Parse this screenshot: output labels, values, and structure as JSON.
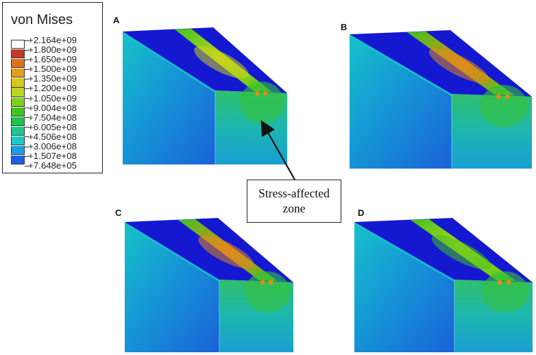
{
  "legend": {
    "title": "von Mises",
    "entries": [
      {
        "label": "+2.164e+09",
        "color": "#ffffff"
      },
      {
        "label": "+1.800e+09",
        "color": "#c0392b"
      },
      {
        "label": "+1.650e+09",
        "color": "#e0701e"
      },
      {
        "label": "+1.500e+09",
        "color": "#e3a01c"
      },
      {
        "label": "+1.350e+09",
        "color": "#d8c71c"
      },
      {
        "label": "+1.200e+09",
        "color": "#b9d81c"
      },
      {
        "label": "+1.050e+09",
        "color": "#7ecf1c"
      },
      {
        "label": "+9.004e+08",
        "color": "#3fc61c"
      },
      {
        "label": "+7.504e+08",
        "color": "#1ec44e"
      },
      {
        "label": "+6.005e+08",
        "color": "#1cc88f"
      },
      {
        "label": "+4.506e+08",
        "color": "#1cc8c8"
      },
      {
        "label": "+3.006e+08",
        "color": "#1c9ee0"
      },
      {
        "label": "+1.507e+08",
        "color": "#1c5fe0"
      },
      {
        "label": "+7.648e+05",
        "color": "#1c1ee0"
      }
    ]
  },
  "panels": [
    {
      "id": "A",
      "label": "A"
    },
    {
      "id": "B",
      "label": "B"
    },
    {
      "id": "C",
      "label": "C"
    },
    {
      "id": "D",
      "label": "D"
    }
  ],
  "callout": {
    "line1": "Stress-affected",
    "line2": "zone"
  },
  "colors": {
    "deep_blue": "#1418d0",
    "mid_blue": "#1a62d8",
    "cyan": "#17c2c8",
    "green": "#3ec41e",
    "yellow": "#c8d41c",
    "orange": "#e08a1c",
    "red": "#c0392b"
  }
}
